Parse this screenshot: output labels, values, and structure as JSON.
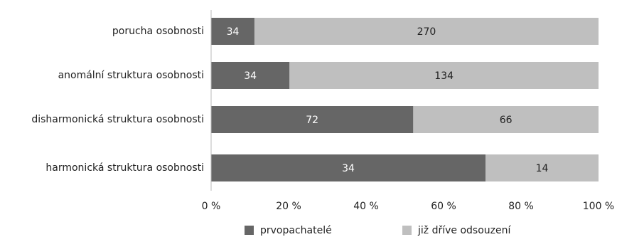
{
  "chart_data": {
    "type": "bar",
    "orientation": "horizontal",
    "stacking": "percent",
    "title": "",
    "xlabel": "",
    "ylabel": "",
    "xlim": [
      0,
      100
    ],
    "x_ticks": [
      "0 %",
      "20 %",
      "40 %",
      "60 %",
      "80 %",
      "100 %"
    ],
    "grid": false,
    "legend_position": "bottom",
    "categories": [
      "porucha osobnosti",
      "anomální struktura osobnosti",
      "disharmonická struktura osobnosti",
      "harmonická struktura osobnosti"
    ],
    "series": [
      {
        "name": "prvopachatelé",
        "values": [
          34,
          34,
          72,
          34
        ],
        "color": "#666666",
        "label_color": "#ffffff"
      },
      {
        "name": "již dříve odsouzení",
        "values": [
          270,
          134,
          66,
          14
        ],
        "color": "#bfbfbf",
        "label_color": "#222222"
      }
    ]
  }
}
